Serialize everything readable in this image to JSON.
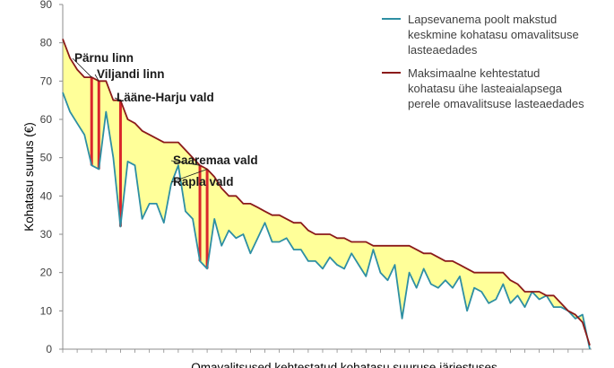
{
  "chart_data": {
    "type": "area",
    "xlabel": "Omavalitsused kehtestatud kohatasu suuruse järjestuses",
    "ylabel": "Kohatasu suurus (€)",
    "ylim": [
      0,
      90
    ],
    "y_ticks": [
      0,
      10,
      20,
      30,
      40,
      50,
      60,
      70,
      80,
      90
    ],
    "grid": false,
    "legend_position": "top-right",
    "colors": {
      "average_line": "#2e8fa3",
      "maximum_line": "#8b1a1a",
      "fill": "#ffff99",
      "highlight": "#d9262c"
    },
    "series": [
      {
        "name": "Lapsevanema poolt makstud keskmine kohatasu omavalitsuse lasteaedades",
        "values": [
          67,
          62,
          59,
          56,
          48,
          47,
          62,
          50,
          32,
          49,
          48,
          34,
          38,
          38,
          33,
          43,
          48,
          36,
          34,
          23,
          21,
          34,
          27,
          31,
          29,
          30,
          25,
          29,
          33,
          28,
          28,
          29,
          26,
          26,
          23,
          23,
          21,
          24,
          22,
          21,
          25,
          22,
          19,
          26,
          20,
          18,
          22,
          8,
          20,
          16,
          21,
          17,
          16,
          18,
          16,
          19,
          10,
          16,
          15,
          12,
          13,
          17,
          12,
          14,
          11,
          15,
          13,
          14,
          11,
          11,
          10,
          8,
          9,
          0
        ]
      },
      {
        "name": "Maksimaalne kehtestatud kohatasu ühe lasteaialapsega perele omavalitsuse lasteaedades",
        "values": [
          81,
          76,
          73,
          71,
          71,
          70,
          70,
          65,
          65,
          60,
          59,
          57,
          56,
          55,
          54,
          54,
          54,
          52,
          50,
          48,
          47,
          45,
          42,
          40,
          40,
          38,
          38,
          37,
          36,
          35,
          35,
          34,
          33,
          33,
          31,
          30,
          30,
          30,
          29,
          29,
          28,
          28,
          28,
          27,
          27,
          27,
          27,
          27,
          27,
          26,
          25,
          25,
          24,
          23,
          23,
          22,
          21,
          20,
          20,
          20,
          20,
          20,
          18,
          17,
          15,
          15,
          15,
          14,
          14,
          12,
          10,
          9,
          7,
          1
        ]
      }
    ],
    "annotations": [
      {
        "label": "Pärnu linn",
        "index": 4
      },
      {
        "label": "Viljandi linn",
        "index": 5
      },
      {
        "label": "Lääne-Harju vald",
        "index": 8
      },
      {
        "label": "Saaremaa vald",
        "index": 19
      },
      {
        "label": "Rapla vald",
        "index": 20
      }
    ]
  }
}
